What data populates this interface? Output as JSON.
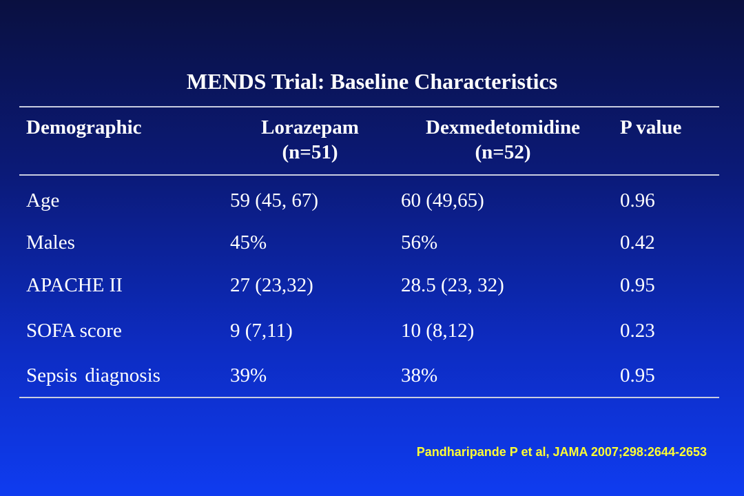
{
  "title": "MENDS Trial: Baseline Characteristics",
  "table": {
    "headers": [
      {
        "line1": "Demographic",
        "line2": ""
      },
      {
        "line1": "Lorazepam",
        "line2": "(n=51)"
      },
      {
        "line1": "Dexmedetomidine",
        "line2": "(n=52)"
      },
      {
        "line1": "P value",
        "line2": ""
      }
    ],
    "rows": [
      [
        "Age",
        "59 (45, 67)",
        "60 (49,65)",
        "0.96"
      ],
      [
        "Males",
        "45%",
        "56%",
        "0.42"
      ],
      [
        "APACHE II",
        "27 (23,32)",
        "28.5 (23, 32)",
        "0.95"
      ],
      [
        "SOFA score",
        "9 (7,11)",
        "10 (8,12)",
        "0.23"
      ],
      [
        "Sepsis diagnosis",
        "39%",
        "38%",
        "0.95"
      ]
    ]
  },
  "citation": "Pandharipande P et al, JAMA 2007;298:2644-2653"
}
